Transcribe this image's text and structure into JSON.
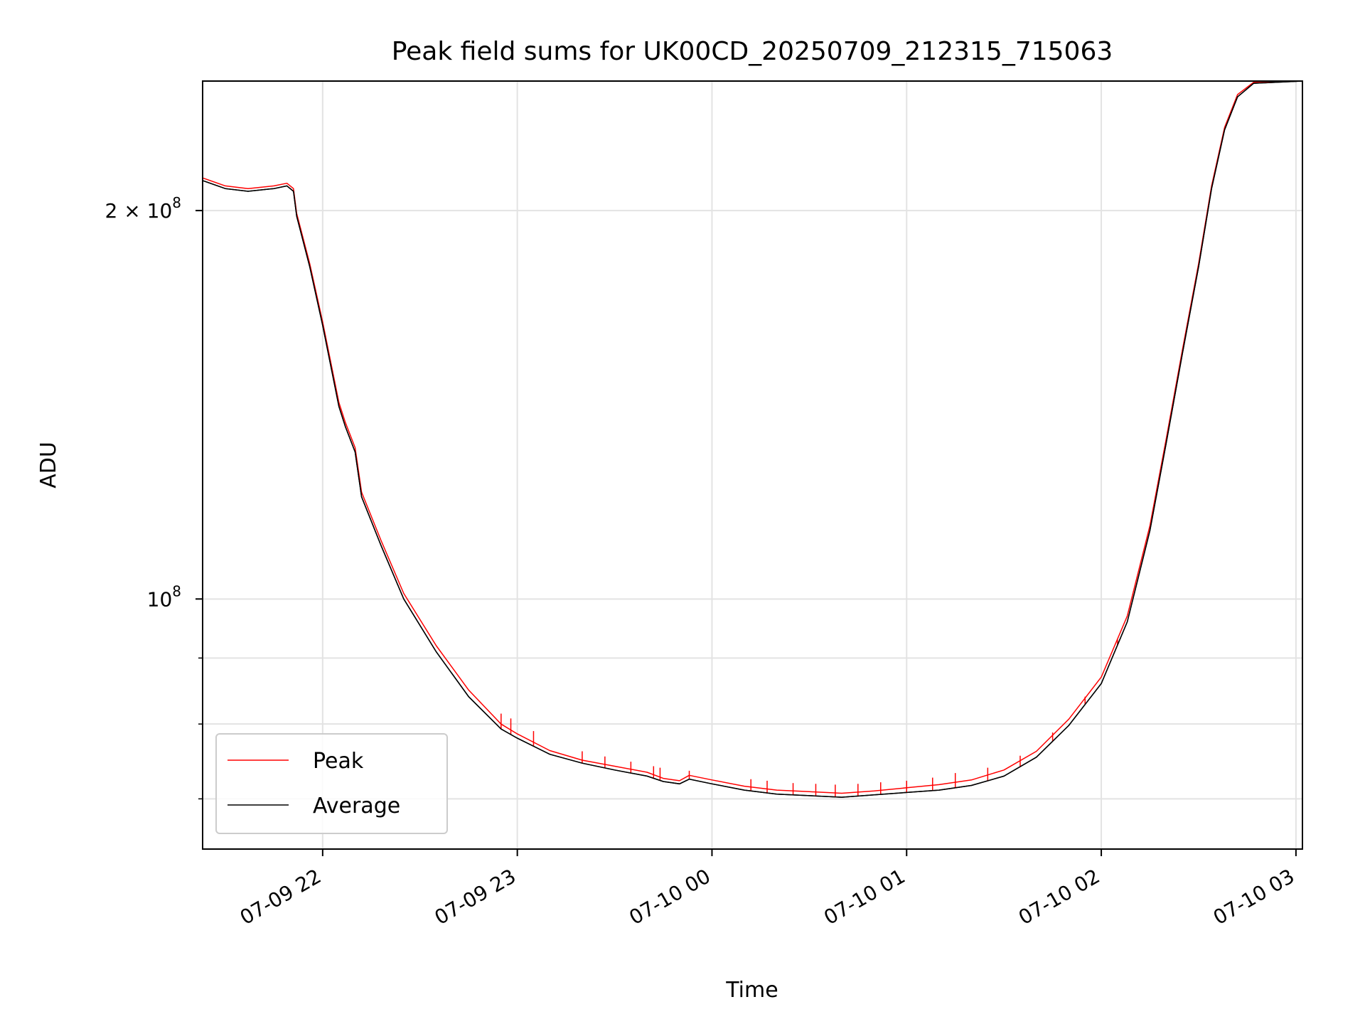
{
  "chart_data": {
    "type": "line",
    "title": "Peak field sums for UK00CD_20250709_212315_715063",
    "xlabel": "Time",
    "ylabel": "ADU",
    "x_unit": "datetime (2025, local time as printed)",
    "xlim": [
      "2025-07-09 21:23",
      "2025-07-10 03:02"
    ],
    "ylim": [
      64000000,
      252000000
    ],
    "y_scale": "log",
    "grid": true,
    "legend_position": "lower-left",
    "x_ticks": [
      {
        "value": "2025-07-09 22:00",
        "label": "07-09 22"
      },
      {
        "value": "2025-07-09 23:00",
        "label": "07-09 23"
      },
      {
        "value": "2025-07-10 00:00",
        "label": "07-10 00"
      },
      {
        "value": "2025-07-10 01:00",
        "label": "07-10 01"
      },
      {
        "value": "2025-07-10 02:00",
        "label": "07-10 02"
      },
      {
        "value": "2025-07-10 03:00",
        "label": "07-10 03"
      }
    ],
    "y_ticks": [
      {
        "value": 200000000,
        "label_base": "2 × 10",
        "label_exp": "8"
      },
      {
        "value": 100000000,
        "label_base": "10",
        "label_exp": "8"
      }
    ],
    "y_minor_ticks": [
      90000000,
      80000000,
      70000000
    ],
    "series": [
      {
        "name": "Average",
        "color": "#000000",
        "points": [
          [
            "2025-07-09 21:23",
            211000000
          ],
          [
            "2025-07-09 21:30",
            208000000
          ],
          [
            "2025-07-09 21:37",
            207000000
          ],
          [
            "2025-07-09 21:45",
            208000000
          ],
          [
            "2025-07-09 21:49",
            209000000
          ],
          [
            "2025-07-09 21:51",
            207000000
          ],
          [
            "2025-07-09 21:52",
            198000000
          ],
          [
            "2025-07-09 21:56",
            181000000
          ],
          [
            "2025-07-09 22:00",
            163000000
          ],
          [
            "2025-07-09 22:05",
            141000000
          ],
          [
            "2025-07-09 22:07",
            136000000
          ],
          [
            "2025-07-09 22:10",
            130000000
          ],
          [
            "2025-07-09 22:12",
            120000000
          ],
          [
            "2025-07-09 22:18",
            110000000
          ],
          [
            "2025-07-09 22:25",
            100000000
          ],
          [
            "2025-07-09 22:35",
            91000000
          ],
          [
            "2025-07-09 22:45",
            84000000
          ],
          [
            "2025-07-09 22:55",
            79300000
          ],
          [
            "2025-07-09 23:00",
            78000000
          ],
          [
            "2025-07-09 23:10",
            75800000
          ],
          [
            "2025-07-09 23:20",
            74600000
          ],
          [
            "2025-07-09 23:30",
            73700000
          ],
          [
            "2025-07-09 23:40",
            72900000
          ],
          [
            "2025-07-09 23:45",
            72200000
          ],
          [
            "2025-07-09 23:50",
            71900000
          ],
          [
            "2025-07-09 23:53",
            72500000
          ],
          [
            "2025-07-10 00:00",
            71900000
          ],
          [
            "2025-07-10 00:10",
            71100000
          ],
          [
            "2025-07-10 00:20",
            70600000
          ],
          [
            "2025-07-10 00:30",
            70400000
          ],
          [
            "2025-07-10 00:40",
            70200000
          ],
          [
            "2025-07-10 00:50",
            70500000
          ],
          [
            "2025-07-10 01:00",
            70800000
          ],
          [
            "2025-07-10 01:10",
            71100000
          ],
          [
            "2025-07-10 01:20",
            71700000
          ],
          [
            "2025-07-10 01:30",
            72900000
          ],
          [
            "2025-07-10 01:40",
            75400000
          ],
          [
            "2025-07-10 01:50",
            79800000
          ],
          [
            "2025-07-10 02:00",
            86000000
          ],
          [
            "2025-07-10 02:08",
            96000000
          ],
          [
            "2025-07-10 02:15",
            113000000
          ],
          [
            "2025-07-10 02:20",
            132000000
          ],
          [
            "2025-07-10 02:25",
            155000000
          ],
          [
            "2025-07-10 02:30",
            181000000
          ],
          [
            "2025-07-10 02:34",
            208000000
          ],
          [
            "2025-07-10 02:38",
            231000000
          ],
          [
            "2025-07-10 02:42",
            245000000
          ],
          [
            "2025-07-10 02:47",
            251000000
          ],
          [
            "2025-07-10 03:02",
            252000000
          ]
        ]
      },
      {
        "name": "Peak",
        "color": "#ff0000",
        "points": [
          [
            "2025-07-09 21:23",
            212000000
          ],
          [
            "2025-07-09 21:30",
            209000000
          ],
          [
            "2025-07-09 21:37",
            208000000
          ],
          [
            "2025-07-09 21:45",
            209000000
          ],
          [
            "2025-07-09 21:49",
            210000000
          ],
          [
            "2025-07-09 21:51",
            208000000
          ],
          [
            "2025-07-09 21:52",
            199000000
          ],
          [
            "2025-07-09 21:56",
            182000000
          ],
          [
            "2025-07-09 22:00",
            164000000
          ],
          [
            "2025-07-09 22:05",
            142000000
          ],
          [
            "2025-07-09 22:07",
            137000000
          ],
          [
            "2025-07-09 22:10",
            131000000
          ],
          [
            "2025-07-09 22:12",
            121000000
          ],
          [
            "2025-07-09 22:18",
            111000000
          ],
          [
            "2025-07-09 22:25",
            101000000
          ],
          [
            "2025-07-09 22:35",
            92000000
          ],
          [
            "2025-07-09 22:45",
            85000000
          ],
          [
            "2025-07-09 22:55",
            80000000
          ],
          [
            "2025-07-09 23:00",
            78600000
          ],
          [
            "2025-07-09 23:10",
            76300000
          ],
          [
            "2025-07-09 23:20",
            75000000
          ],
          [
            "2025-07-09 23:30",
            74200000
          ],
          [
            "2025-07-09 23:40",
            73400000
          ],
          [
            "2025-07-09 23:45",
            72600000
          ],
          [
            "2025-07-09 23:50",
            72300000
          ],
          [
            "2025-07-09 23:53",
            73000000
          ],
          [
            "2025-07-10 00:00",
            72400000
          ],
          [
            "2025-07-10 00:10",
            71600000
          ],
          [
            "2025-07-10 00:20",
            71100000
          ],
          [
            "2025-07-10 00:30",
            70900000
          ],
          [
            "2025-07-10 00:40",
            70700000
          ],
          [
            "2025-07-10 00:50",
            71000000
          ],
          [
            "2025-07-10 01:00",
            71400000
          ],
          [
            "2025-07-10 01:10",
            71800000
          ],
          [
            "2025-07-10 01:20",
            72400000
          ],
          [
            "2025-07-10 01:30",
            73700000
          ],
          [
            "2025-07-10 01:40",
            76200000
          ],
          [
            "2025-07-10 01:50",
            80700000
          ],
          [
            "2025-07-10 02:00",
            87000000
          ],
          [
            "2025-07-10 02:08",
            97000000
          ],
          [
            "2025-07-10 02:15",
            114000000
          ],
          [
            "2025-07-10 02:20",
            133000000
          ],
          [
            "2025-07-10 02:25",
            156000000
          ],
          [
            "2025-07-10 02:30",
            182000000
          ],
          [
            "2025-07-10 02:34",
            209000000
          ],
          [
            "2025-07-10 02:38",
            232000000
          ],
          [
            "2025-07-10 02:42",
            246000000
          ],
          [
            "2025-07-10 02:47",
            251500000
          ],
          [
            "2025-07-10 03:02",
            252000000
          ]
        ]
      }
    ],
    "peak_spikes": [
      [
        "2025-07-09 22:55",
        81500000
      ],
      [
        "2025-07-09 22:58",
        80800000
      ],
      [
        "2025-07-09 23:05",
        79000000
      ],
      [
        "2025-07-09 23:20",
        76200000
      ],
      [
        "2025-07-09 23:27",
        75500000
      ],
      [
        "2025-07-09 23:35",
        74800000
      ],
      [
        "2025-07-09 23:42",
        74200000
      ],
      [
        "2025-07-09 23:44",
        74000000
      ],
      [
        "2025-07-09 23:53",
        73600000
      ],
      [
        "2025-07-10 00:12",
        72500000
      ],
      [
        "2025-07-10 00:17",
        72300000
      ],
      [
        "2025-07-10 00:25",
        72000000
      ],
      [
        "2025-07-10 00:32",
        71900000
      ],
      [
        "2025-07-10 00:38",
        71800000
      ],
      [
        "2025-07-10 00:45",
        71900000
      ],
      [
        "2025-07-10 00:52",
        72100000
      ],
      [
        "2025-07-10 01:00",
        72300000
      ],
      [
        "2025-07-10 01:08",
        72700000
      ],
      [
        "2025-07-10 01:15",
        73300000
      ],
      [
        "2025-07-10 01:25",
        74000000
      ],
      [
        "2025-07-10 01:35",
        75600000
      ],
      [
        "2025-07-10 01:45",
        78800000
      ],
      [
        "2025-07-10 01:55",
        84000000
      ],
      [
        "2025-07-10 02:05",
        93000000
      ]
    ],
    "legend": [
      {
        "label": "Peak",
        "color": "#ff0000"
      },
      {
        "label": "Average",
        "color": "#000000"
      }
    ]
  }
}
